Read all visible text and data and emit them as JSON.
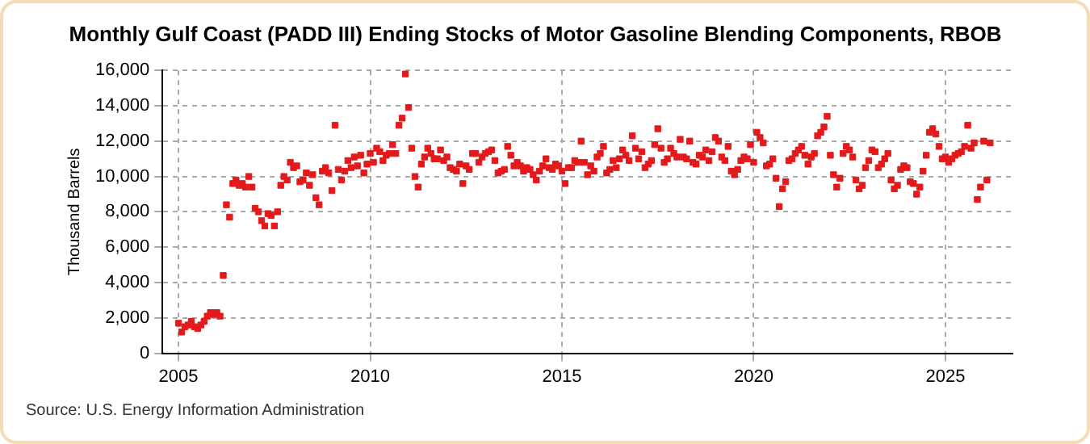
{
  "chart_data": {
    "type": "scatter",
    "title": "Monthly Gulf Coast (PADD III) Ending Stocks of Motor Gasoline Blending Components, RBOB",
    "ylabel": "Thousand Barrels",
    "annotations": [
      "Source: U.S. Energy Information Administration"
    ],
    "xlim": [
      "2004-08",
      "2026-10"
    ],
    "xticks": [
      "2005",
      "2010",
      "2015",
      "2020",
      "2025"
    ],
    "ylim": [
      0,
      16000
    ],
    "yticks": [
      0,
      {
        "value": 2000,
        "label": "2,000"
      },
      {
        "value": 4000,
        "label": "4,000"
      },
      {
        "value": 6000,
        "label": "6,000"
      },
      {
        "value": 8000,
        "label": "8,000"
      },
      {
        "value": 10000,
        "label": "10,000"
      },
      {
        "value": 12000,
        "label": "12,000"
      },
      {
        "value": 14000,
        "label": "14,000"
      },
      {
        "value": 16000,
        "label": "16,000"
      }
    ],
    "grid": true,
    "legend": false,
    "marker": "square",
    "series": [
      {
        "color": "#e31a1c",
        "x": [
          "2005-01",
          "2005-02",
          "2005-03",
          "2005-04",
          "2005-05",
          "2005-06",
          "2005-07",
          "2005-08",
          "2005-09",
          "2005-10",
          "2005-11",
          "2005-12",
          "2006-01",
          "2006-02",
          "2006-03",
          "2006-04",
          "2006-05",
          "2006-06",
          "2006-07",
          "2006-08",
          "2006-09",
          "2006-10",
          "2006-11",
          "2006-12",
          "2007-01",
          "2007-02",
          "2007-03",
          "2007-04",
          "2007-05",
          "2007-06",
          "2007-07",
          "2007-08",
          "2007-09",
          "2007-10",
          "2007-11",
          "2007-12",
          "2008-01",
          "2008-02",
          "2008-03",
          "2008-04",
          "2008-05",
          "2008-06",
          "2008-07",
          "2008-08",
          "2008-09",
          "2008-10",
          "2008-11",
          "2008-12",
          "2009-01",
          "2009-02",
          "2009-03",
          "2009-04",
          "2009-05",
          "2009-06",
          "2009-07",
          "2009-08",
          "2009-09",
          "2009-10",
          "2009-11",
          "2009-12",
          "2010-01",
          "2010-02",
          "2010-03",
          "2010-04",
          "2010-05",
          "2010-06",
          "2010-07",
          "2010-08",
          "2010-09",
          "2010-10",
          "2010-11",
          "2010-12",
          "2011-01",
          "2011-02",
          "2011-03",
          "2011-04",
          "2011-05",
          "2011-06",
          "2011-07",
          "2011-08",
          "2011-09",
          "2011-10",
          "2011-11",
          "2011-12",
          "2012-01",
          "2012-02",
          "2012-03",
          "2012-04",
          "2012-05",
          "2012-06",
          "2012-07",
          "2012-08",
          "2012-09",
          "2012-10",
          "2012-11",
          "2012-12",
          "2013-01",
          "2013-02",
          "2013-03",
          "2013-04",
          "2013-05",
          "2013-06",
          "2013-07",
          "2013-08",
          "2013-09",
          "2013-10",
          "2013-11",
          "2013-12",
          "2014-01",
          "2014-02",
          "2014-03",
          "2014-04",
          "2014-05",
          "2014-06",
          "2014-07",
          "2014-08",
          "2014-09",
          "2014-10",
          "2014-11",
          "2014-12",
          "2015-01",
          "2015-02",
          "2015-03",
          "2015-04",
          "2015-05",
          "2015-06",
          "2015-07",
          "2015-08",
          "2015-09",
          "2015-10",
          "2015-11",
          "2015-12",
          "2016-01",
          "2016-02",
          "2016-03",
          "2016-04",
          "2016-05",
          "2016-06",
          "2016-07",
          "2016-08",
          "2016-09",
          "2016-10",
          "2016-11",
          "2016-12",
          "2017-01",
          "2017-02",
          "2017-03",
          "2017-04",
          "2017-05",
          "2017-06",
          "2017-07",
          "2017-08",
          "2017-09",
          "2017-10",
          "2017-11",
          "2017-12",
          "2018-01",
          "2018-02",
          "2018-03",
          "2018-04",
          "2018-05",
          "2018-06",
          "2018-07",
          "2018-08",
          "2018-09",
          "2018-10",
          "2018-11",
          "2018-12",
          "2019-01",
          "2019-02",
          "2019-03",
          "2019-04",
          "2019-05",
          "2019-06",
          "2019-07",
          "2019-08",
          "2019-09",
          "2019-10",
          "2019-11",
          "2019-12",
          "2020-01",
          "2020-02",
          "2020-03",
          "2020-04",
          "2020-05",
          "2020-06",
          "2020-07",
          "2020-08",
          "2020-09",
          "2020-10",
          "2020-11",
          "2020-12",
          "2021-01",
          "2021-02",
          "2021-03",
          "2021-04",
          "2021-05",
          "2021-06",
          "2021-07",
          "2021-08",
          "2021-09",
          "2021-10",
          "2021-11",
          "2021-12",
          "2022-01",
          "2022-02",
          "2022-03",
          "2022-04",
          "2022-05",
          "2022-06",
          "2022-07",
          "2022-08",
          "2022-09",
          "2022-10",
          "2022-11",
          "2022-12",
          "2023-01",
          "2023-02",
          "2023-03",
          "2023-04",
          "2023-05",
          "2023-06",
          "2023-07",
          "2023-08",
          "2023-09",
          "2023-10",
          "2023-11",
          "2023-12",
          "2024-01",
          "2024-02",
          "2024-03",
          "2024-04",
          "2024-05",
          "2024-06",
          "2024-07",
          "2024-08",
          "2024-09",
          "2024-10",
          "2024-11",
          "2024-12",
          "2025-01",
          "2025-02",
          "2025-03",
          "2025-04",
          "2025-05",
          "2025-06",
          "2025-07",
          "2025-08",
          "2025-09",
          "2025-10",
          "2025-11",
          "2025-12",
          "2026-01",
          "2026-02",
          "2026-03"
        ],
        "values": [
          1700,
          1200,
          1500,
          1600,
          1800,
          1500,
          1400,
          1600,
          1800,
          2100,
          2300,
          2200,
          2300,
          2100,
          4400,
          8400,
          7700,
          9600,
          9800,
          9500,
          9600,
          9400,
          10000,
          9400,
          8200,
          8000,
          7500,
          7200,
          7900,
          7800,
          7200,
          8000,
          9500,
          10000,
          9800,
          10800,
          10500,
          10600,
          9700,
          9800,
          10200,
          9500,
          10100,
          8800,
          8400,
          10300,
          10500,
          10200,
          9200,
          12900,
          10400,
          9800,
          10300,
          10900,
          10500,
          11100,
          10600,
          11200,
          10200,
          10700,
          11300,
          10800,
          11600,
          11400,
          10900,
          11200,
          11300,
          11800,
          11300,
          12900,
          13300,
          15800,
          13900,
          11600,
          10000,
          9400,
          10700,
          11100,
          11600,
          11300,
          11000,
          11000,
          11500,
          10900,
          11100,
          10500,
          10400,
          10300,
          10700,
          9600,
          10600,
          10400,
          11300,
          11300,
          10800,
          11100,
          11300,
          11400,
          11500,
          10900,
          10200,
          10300,
          10400,
          11700,
          11200,
          10600,
          10800,
          10600,
          10300,
          10500,
          10400,
          10100,
          9800,
          10300,
          10600,
          11000,
          10500,
          10400,
          10700,
          10600,
          10300,
          9600,
          10500,
          10500,
          10900,
          10800,
          12000,
          10800,
          10100,
          10600,
          10300,
          11100,
          11300,
          11700,
          10200,
          10400,
          10900,
          10500,
          11000,
          11500,
          11200,
          10900,
          12300,
          11600,
          11000,
          11400,
          10500,
          10700,
          10900,
          11800,
          12700,
          11600,
          10800,
          11000,
          11600,
          11300,
          11100,
          12100,
          11100,
          11000,
          12000,
          10800,
          10700,
          11200,
          11100,
          11500,
          10900,
          11400,
          12200,
          12000,
          11100,
          10900,
          11700,
          10300,
          10100,
          10400,
          10900,
          11100,
          11000,
          11800,
          10800,
          12500,
          12200,
          11900,
          10600,
          10700,
          11000,
          9900,
          8300,
          9300,
          9700,
          10900,
          11000,
          11300,
          11500,
          11700,
          11200,
          10700,
          11100,
          11300,
          12300,
          12500,
          12800,
          13400,
          11200,
          10100,
          9400,
          9900,
          11300,
          11700,
          11500,
          11100,
          9800,
          9300,
          9500,
          10500,
          10900,
          11500,
          11400,
          10500,
          10700,
          11000,
          11300,
          9800,
          9300,
          9500,
          10400,
          10600,
          10500,
          9700,
          9600,
          9000,
          9400,
          10300,
          11200,
          12500,
          12700,
          12400,
          11700,
          11000,
          11100,
          10800,
          11000,
          11200,
          11300,
          11400,
          11700,
          12900,
          11600,
          11900,
          8700,
          9400,
          12000,
          9800,
          11900
        ]
      }
    ]
  }
}
